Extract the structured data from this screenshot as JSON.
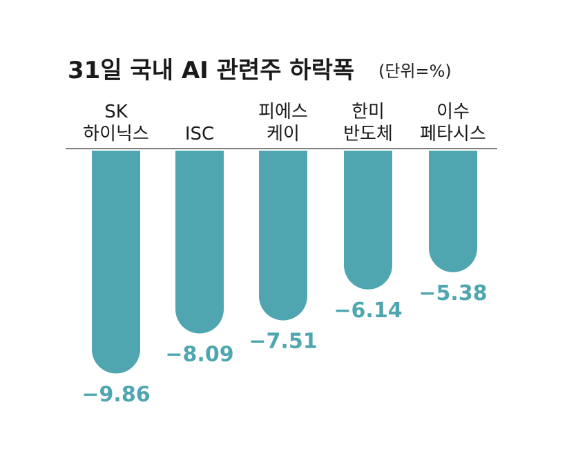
{
  "chart_data": {
    "type": "bar",
    "title": "31일 국내 AI 관련주 하락폭",
    "unit": "(단위=%)",
    "categories": [
      [
        "SK",
        "하이닉스"
      ],
      [
        "ISC"
      ],
      [
        "피에스",
        "케이"
      ],
      [
        "한미",
        "반도체"
      ],
      [
        "이수",
        "페타시스"
      ]
    ],
    "values": [
      -9.86,
      -8.09,
      -7.51,
      -6.14,
      -5.38
    ],
    "value_labels": [
      "−9.86",
      "−8.09",
      "−7.51",
      "−6.14",
      "−5.38"
    ],
    "xlabel": "",
    "ylabel": "",
    "ylim": [
      -10,
      0
    ],
    "grid": false,
    "legend": "none"
  },
  "colors": {
    "bar": "#4fa6b0",
    "value_text": "#4fa6b0",
    "baseline": "#555555",
    "text": "#1a1a1a"
  }
}
